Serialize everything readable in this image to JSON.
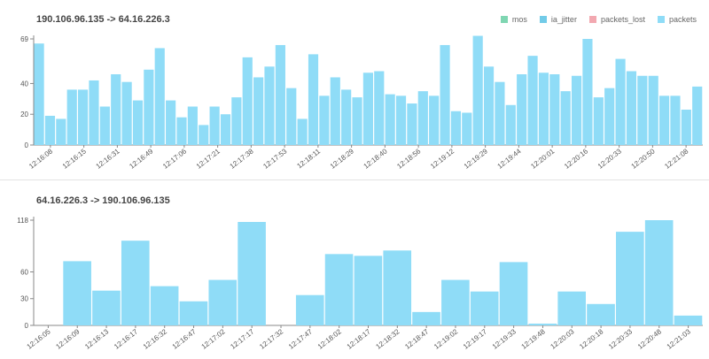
{
  "chart_data": [
    {
      "type": "bar",
      "title": "190.106.96.135 -> 64.16.226.3",
      "legend": [
        {
          "label": "mos",
          "color": "#7fd6b2"
        },
        {
          "label": "ia_jitter",
          "color": "#72cbe8"
        },
        {
          "label": "packets_lost",
          "color": "#f2a8b0"
        },
        {
          "label": "packets",
          "color": "#8fdcf7"
        }
      ],
      "series_color": "#8fdcf7",
      "ylim": [
        0,
        69
      ],
      "yticks": [
        0,
        20,
        40,
        69
      ],
      "xtick_labels": [
        "12:16:08",
        "12:16:15",
        "12:16:31",
        "12:16:49",
        "12:17:06",
        "12:17:21",
        "12:17:38",
        "12:17:53",
        "12:18:11",
        "12:18:29",
        "12:18:40",
        "12:18:56",
        "12:19:12",
        "12:19:29",
        "12:19:44",
        "12:20:01",
        "12:20:16",
        "12:20:33",
        "12:20:50",
        "12:21:08"
      ],
      "values": [
        66,
        19,
        17,
        36,
        36,
        42,
        25,
        46,
        41,
        29,
        49,
        63,
        29,
        18,
        25,
        13,
        25,
        20,
        31,
        57,
        44,
        51,
        65,
        37,
        17,
        59,
        32,
        44,
        36,
        31,
        47,
        48,
        33,
        32,
        27,
        35,
        32,
        65,
        22,
        21,
        71,
        51,
        41,
        26,
        46,
        58,
        47,
        46,
        35,
        45,
        69,
        31,
        37,
        56,
        48,
        45,
        45,
        32,
        32,
        23,
        38
      ]
    },
    {
      "type": "bar",
      "title": "64.16.226.3 -> 190.106.96.135",
      "series_color": "#8fdcf7",
      "ylim": [
        0,
        118
      ],
      "yticks": [
        0,
        30,
        60,
        118
      ],
      "xtick_labels": [
        "12:16:05",
        "12:16:09",
        "12:16:13",
        "12:16:17",
        "12:16:32",
        "12:16:47",
        "12:17:02",
        "12:17:17",
        "12:17:32",
        "12:17:47",
        "12:18:02",
        "12:18:17",
        "12:18:32",
        "12:18:47",
        "12:19:02",
        "12:19:17",
        "12:19:33",
        "12:19:48",
        "12:20:03",
        "12:20:18",
        "12:20:33",
        "12:20:48",
        "12:21:03"
      ],
      "values": [
        0,
        72,
        39,
        95,
        44,
        27,
        51,
        116,
        0,
        34,
        80,
        78,
        84,
        15,
        51,
        38,
        71,
        2,
        38,
        24,
        105,
        118,
        11
      ]
    }
  ]
}
